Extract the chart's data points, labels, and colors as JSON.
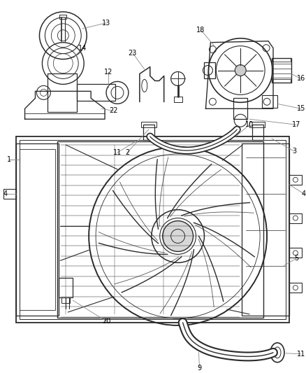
{
  "bg_color": "#ffffff",
  "fig_width": 4.38,
  "fig_height": 5.33,
  "dpi": 100,
  "line_color": "#2a2a2a",
  "label_color": "#000000",
  "leader_color": "#888888",
  "label_fontsize": 7.0
}
